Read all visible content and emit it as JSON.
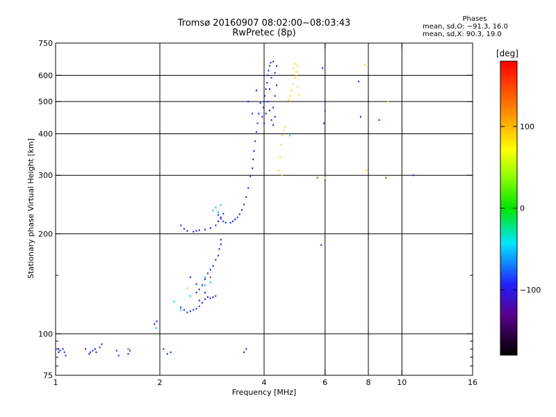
{
  "header": {
    "title": "Tromsø 20160907 08:02:00−08:03:43",
    "subtitle": "RwPretec (8p)"
  },
  "phase_box": {
    "heading": "Phases",
    "line_o": "mean, sd,O: −91.3, 16.0",
    "line_x": "mean, sd,X:  90.3, 19.0"
  },
  "colorbar": {
    "unit": "[deg]",
    "ticks": [
      "100",
      "0",
      "−100"
    ],
    "tick_values": [
      100,
      0,
      -100
    ],
    "range": [
      -180,
      180
    ]
  },
  "chart_data": {
    "type": "scatter",
    "xlabel": "Frequency [MHz]",
    "ylabel": "Stationary phase Virtual Height [km]",
    "x_scale": "log",
    "y_scale": "log",
    "xlim": [
      1,
      16
    ],
    "ylim": [
      75,
      750
    ],
    "grid": true,
    "x_ticks": [
      1,
      2,
      4,
      6,
      8,
      10,
      16
    ],
    "x_tick_labels": [
      "1",
      "2",
      "4",
      "6",
      "8",
      "10",
      "16"
    ],
    "y_ticks": [
      75,
      100,
      200,
      300,
      400,
      500,
      600,
      750
    ],
    "y_tick_labels": [
      "75",
      "100",
      "200",
      "300",
      "400",
      "500",
      "600",
      "750"
    ],
    "y_minor_ticks": [
      80,
      85,
      90,
      95,
      150
    ],
    "series": [
      {
        "color": "#1e2ee6",
        "phase": -100,
        "points": [
          [
            1.02,
            88
          ],
          [
            1.03,
            89
          ],
          [
            1.05,
            90
          ],
          [
            1.06,
            88
          ],
          [
            1.07,
            86
          ],
          [
            1.02,
            90
          ],
          [
            1.22,
            90
          ],
          [
            1.26,
            88
          ],
          [
            1.28,
            89
          ],
          [
            1.3,
            90
          ],
          [
            1.34,
            91
          ],
          [
            1.36,
            93
          ],
          [
            1.25,
            87
          ],
          [
            1.31,
            88
          ],
          [
            1.5,
            89
          ],
          [
            1.52,
            86
          ],
          [
            1.62,
            87
          ],
          [
            1.64,
            89
          ],
          [
            1.93,
            107
          ],
          [
            1.96,
            109
          ],
          [
            2.05,
            90
          ],
          [
            2.1,
            87
          ],
          [
            2.15,
            88
          ],
          [
            2.3,
            120
          ],
          [
            2.35,
            118
          ],
          [
            2.4,
            116
          ],
          [
            2.45,
            117
          ],
          [
            2.5,
            118
          ],
          [
            2.55,
            119
          ],
          [
            2.6,
            121
          ],
          [
            2.65,
            124
          ],
          [
            2.7,
            127
          ],
          [
            2.75,
            129
          ],
          [
            2.8,
            128
          ],
          [
            2.85,
            129
          ],
          [
            2.9,
            130
          ],
          [
            2.55,
            133
          ],
          [
            2.6,
            136
          ],
          [
            2.65,
            140
          ],
          [
            2.7,
            146
          ],
          [
            2.75,
            152
          ],
          [
            2.8,
            156
          ],
          [
            2.85,
            160
          ],
          [
            2.9,
            167
          ],
          [
            2.95,
            172
          ],
          [
            2.97,
            180
          ],
          [
            3.0,
            186
          ],
          [
            3.0,
            192
          ],
          [
            2.45,
            148
          ],
          [
            2.55,
            141
          ],
          [
            2.6,
            126
          ],
          [
            2.7,
            133
          ],
          [
            2.3,
            212
          ],
          [
            2.35,
            207
          ],
          [
            2.4,
            204
          ],
          [
            2.5,
            203
          ],
          [
            2.55,
            204
          ],
          [
            2.6,
            205
          ],
          [
            2.7,
            206
          ],
          [
            2.8,
            208
          ],
          [
            2.9,
            212
          ],
          [
            2.95,
            218
          ],
          [
            3.0,
            224
          ],
          [
            3.05,
            230
          ],
          [
            2.95,
            228
          ],
          [
            3.0,
            222
          ],
          [
            3.05,
            218
          ],
          [
            3.1,
            216
          ],
          [
            3.2,
            216
          ],
          [
            3.25,
            218
          ],
          [
            3.3,
            221
          ],
          [
            3.35,
            224
          ],
          [
            3.4,
            229
          ],
          [
            3.45,
            236
          ],
          [
            3.5,
            245
          ],
          [
            3.55,
            258
          ],
          [
            3.6,
            275
          ],
          [
            3.65,
            298
          ],
          [
            3.7,
            315
          ],
          [
            3.72,
            335
          ],
          [
            3.74,
            355
          ],
          [
            3.77,
            380
          ],
          [
            3.8,
            405
          ],
          [
            3.83,
            430
          ],
          [
            3.86,
            460
          ],
          [
            3.9,
            495
          ],
          [
            3.6,
            500
          ],
          [
            3.7,
            460
          ],
          [
            3.8,
            540
          ],
          [
            3.95,
            450
          ],
          [
            3.98,
            480
          ],
          [
            4.0,
            500
          ],
          [
            4.02,
            520
          ],
          [
            4.05,
            545
          ],
          [
            4.08,
            570
          ],
          [
            4.1,
            600
          ],
          [
            4.12,
            620
          ],
          [
            4.15,
            640
          ],
          [
            4.18,
            655
          ],
          [
            4.0,
            430
          ],
          [
            4.05,
            460
          ],
          [
            4.1,
            500
          ],
          [
            4.15,
            470
          ],
          [
            4.2,
            440
          ],
          [
            4.25,
            480
          ],
          [
            4.3,
            520
          ],
          [
            4.35,
            560
          ],
          [
            4.3,
            610
          ],
          [
            4.35,
            640
          ],
          [
            4.25,
            660
          ],
          [
            4.2,
            590
          ],
          [
            4.15,
            545
          ],
          [
            4.25,
            425
          ],
          [
            4.3,
            450
          ],
          [
            3.5,
            88
          ],
          [
            3.55,
            90
          ],
          [
            5.9,
            630
          ],
          [
            5.95,
            430
          ],
          [
            6.0,
            500
          ],
          [
            6.0,
            470
          ],
          [
            5.85,
            185
          ],
          [
            7.5,
            575
          ],
          [
            7.6,
            450
          ],
          [
            8.6,
            440
          ],
          [
            10.8,
            300
          ]
        ]
      },
      {
        "color": "#00c8e6",
        "phase": -40,
        "points": [
          [
            1.95,
            104
          ],
          [
            2.2,
            125
          ],
          [
            2.3,
            118
          ],
          [
            2.45,
            130
          ],
          [
            2.7,
            140
          ],
          [
            2.8,
            143
          ],
          [
            2.85,
            235
          ],
          [
            2.9,
            240
          ],
          [
            2.95,
            232
          ],
          [
            3.0,
            244
          ],
          [
            2.7,
            148
          ],
          [
            4.75,
            395
          ]
        ]
      },
      {
        "color": "#ffd21e",
        "phase": 110,
        "points": [
          [
            4.4,
            310
          ],
          [
            4.45,
            340
          ],
          [
            4.48,
            370
          ],
          [
            4.52,
            395
          ],
          [
            4.55,
            410
          ],
          [
            4.6,
            420
          ],
          [
            4.7,
            505
          ],
          [
            4.75,
            520
          ],
          [
            4.8,
            540
          ],
          [
            4.85,
            565
          ],
          [
            4.9,
            590
          ],
          [
            4.95,
            615
          ],
          [
            5.0,
            640
          ],
          [
            4.85,
            630
          ],
          [
            4.95,
            600
          ],
          [
            5.0,
            555
          ],
          [
            5.05,
            525
          ],
          [
            4.9,
            650
          ],
          [
            2.4,
            137
          ],
          [
            4.5,
            300
          ],
          [
            6.0,
            295
          ],
          [
            7.8,
            645
          ],
          [
            7.9,
            310
          ],
          [
            9.1,
            500
          ]
        ]
      },
      {
        "color": "#e63c14",
        "phase": 150,
        "points": [
          [
            1.62,
            90
          ],
          [
            2.8,
            148
          ],
          [
            5.7,
            295
          ],
          [
            9.0,
            295
          ]
        ]
      }
    ]
  }
}
